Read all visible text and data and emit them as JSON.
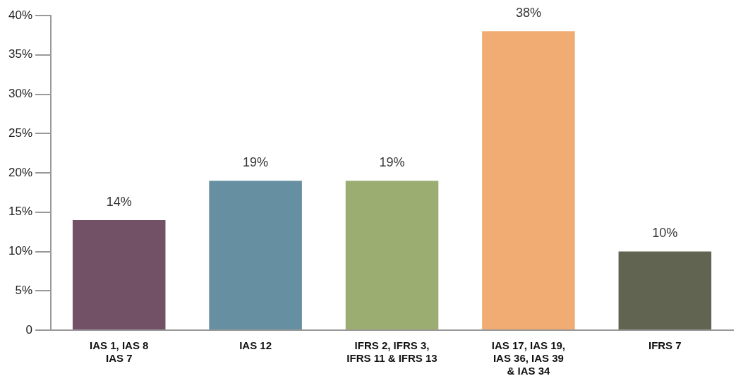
{
  "chart_data": {
    "type": "bar",
    "categories": [
      "IAS 1, IAS 8\nIAS 7",
      "IAS 12",
      "IFRS 2, IFRS 3,\nIFRS 11 & IFRS 13",
      "IAS 17, IAS 19,\nIAS 36, IAS 39\n& IAS 34",
      "IFRS 7"
    ],
    "values": [
      14,
      19,
      19,
      38,
      10
    ],
    "colors": [
      "#725167",
      "#668fa1",
      "#9cad72",
      "#f0ac72",
      "#616450"
    ],
    "value_labels": [
      "14%",
      "19%",
      "19%",
      "38%",
      "10%"
    ],
    "ylim": [
      0,
      40
    ],
    "yticks": [
      0,
      {
        "value": 5,
        "label": "5%"
      },
      {
        "value": 10,
        "label": "10%"
      },
      {
        "value": 15,
        "label": "15%"
      },
      {
        "value": 20,
        "label": "20%"
      },
      {
        "value": 25,
        "label": "25%"
      },
      {
        "value": 30,
        "label": "30%"
      },
      {
        "value": 35,
        "label": "35%"
      },
      {
        "value": 40,
        "label": "40%"
      }
    ],
    "grid": false,
    "legend": false
  }
}
